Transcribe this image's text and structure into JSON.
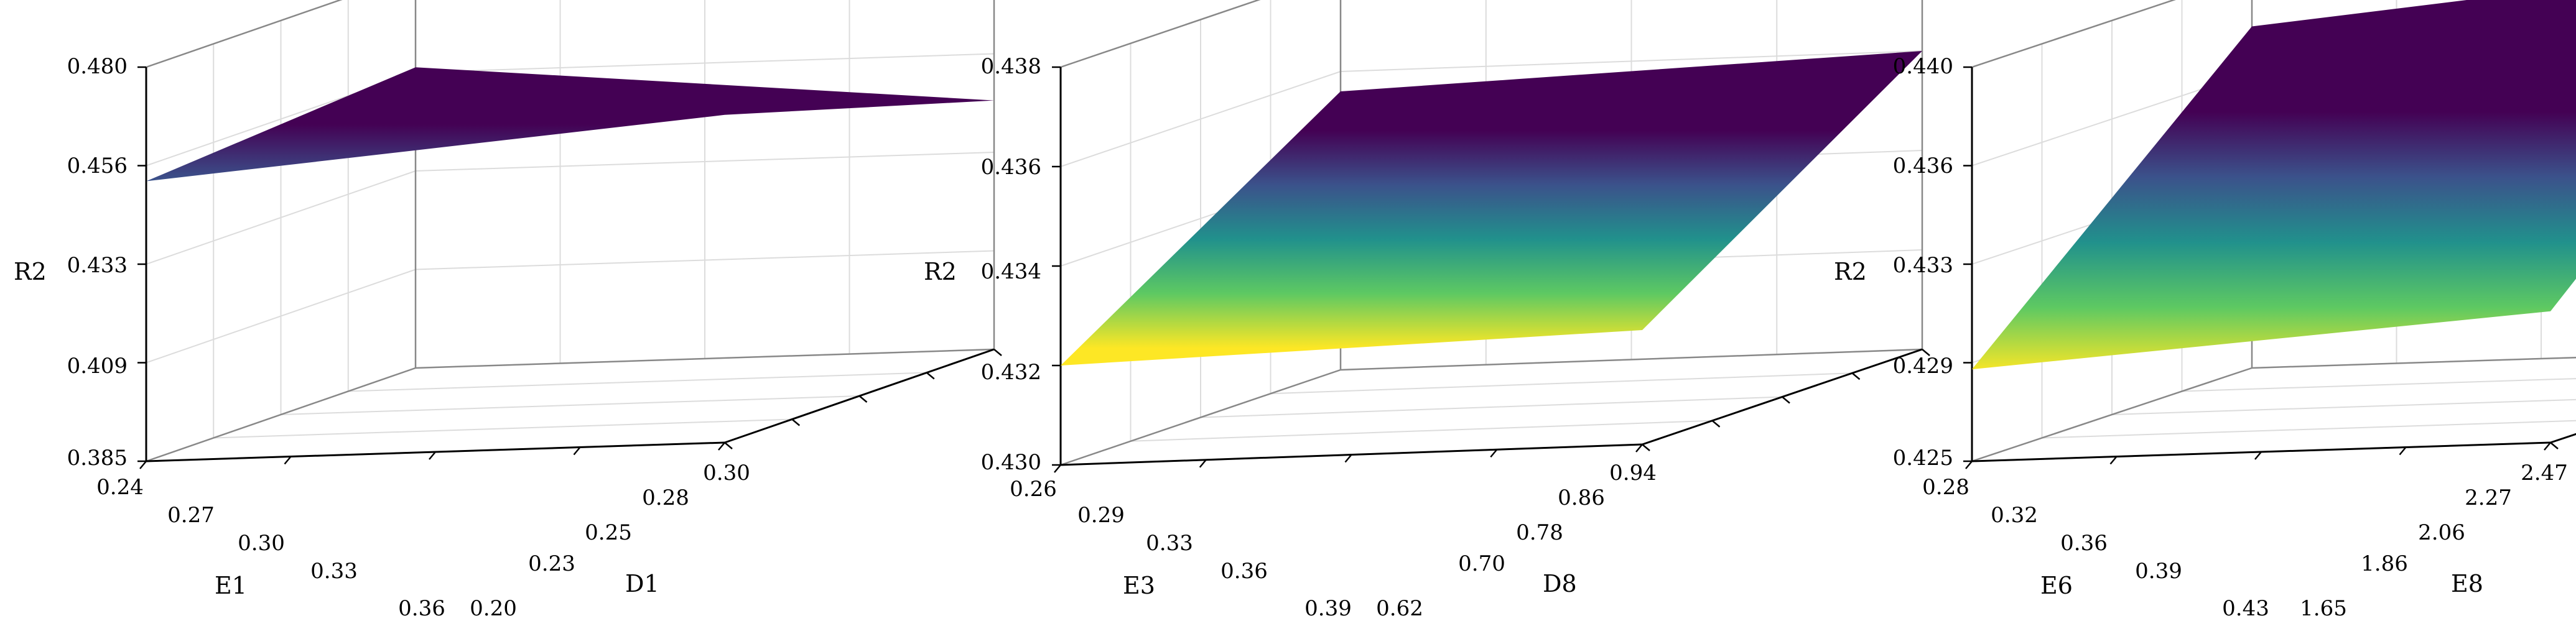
{
  "chart_data": [
    {
      "type": "surface",
      "xlabel": "E1",
      "ylabel": "D1",
      "zlabel": "R2",
      "xticks": [
        "0.24",
        "0.27",
        "0.30",
        "0.33",
        "0.36"
      ],
      "yticks": [
        "0.20",
        "0.23",
        "0.25",
        "0.28",
        "0.30"
      ],
      "zticks": [
        "0.385",
        "0.409",
        "0.433",
        "0.456",
        "0.480"
      ],
      "xlim": [
        0.24,
        0.36
      ],
      "ylim": [
        0.2,
        0.3
      ],
      "zlim": [
        0.385,
        0.48
      ],
      "corners": [
        {
          "x": 0.24,
          "y": 0.2,
          "z": 0.4525
        },
        {
          "x": 0.36,
          "y": 0.2,
          "z": 0.4575
        },
        {
          "x": 0.36,
          "y": 0.3,
          "z": 0.445
        },
        {
          "x": 0.24,
          "y": 0.3,
          "z": 0.464
        }
      ],
      "colorscale": "viridis",
      "grid": true
    },
    {
      "type": "surface",
      "xlabel": "E3",
      "ylabel": "D8",
      "zlabel": "R2",
      "xticks": [
        "0.26",
        "0.29",
        "0.33",
        "0.36",
        "0.39"
      ],
      "yticks": [
        "0.62",
        "0.70",
        "0.78",
        "0.86",
        "0.94"
      ],
      "zticks": [
        "0.430",
        "0.432",
        "0.434",
        "0.436",
        "0.438"
      ],
      "xlim": [
        0.26,
        0.39
      ],
      "ylim": [
        0.62,
        0.94
      ],
      "zlim": [
        0.43,
        0.438
      ],
      "corners": [
        {
          "x": 0.26,
          "y": 0.62,
          "z": 0.432
        },
        {
          "x": 0.39,
          "y": 0.62,
          "z": 0.4356
        },
        {
          "x": 0.39,
          "y": 0.94,
          "z": 0.436
        },
        {
          "x": 0.26,
          "y": 0.94,
          "z": 0.4323
        }
      ],
      "colorscale": "viridis",
      "grid": true
    },
    {
      "type": "surface",
      "xlabel": "E6",
      "ylabel": "E8",
      "zlabel": "R2",
      "xticks": [
        "0.28",
        "0.32",
        "0.36",
        "0.39",
        "0.43"
      ],
      "yticks": [
        "1.65",
        "1.86",
        "2.06",
        "2.27",
        "2.47"
      ],
      "zticks": [
        "0.425",
        "0.429",
        "0.433",
        "0.436",
        "0.440"
      ],
      "xlim": [
        0.28,
        0.43
      ],
      "ylim": [
        1.65,
        2.47
      ],
      "zlim": [
        0.425,
        0.44
      ],
      "corners": [
        {
          "x": 0.28,
          "y": 1.65,
          "z": 0.4285
        },
        {
          "x": 0.43,
          "y": 1.65,
          "z": 0.438
        },
        {
          "x": 0.43,
          "y": 2.47,
          "z": 0.44
        },
        {
          "x": 0.28,
          "y": 2.47,
          "z": 0.43
        }
      ],
      "colorscale": "viridis",
      "grid": true
    }
  ]
}
